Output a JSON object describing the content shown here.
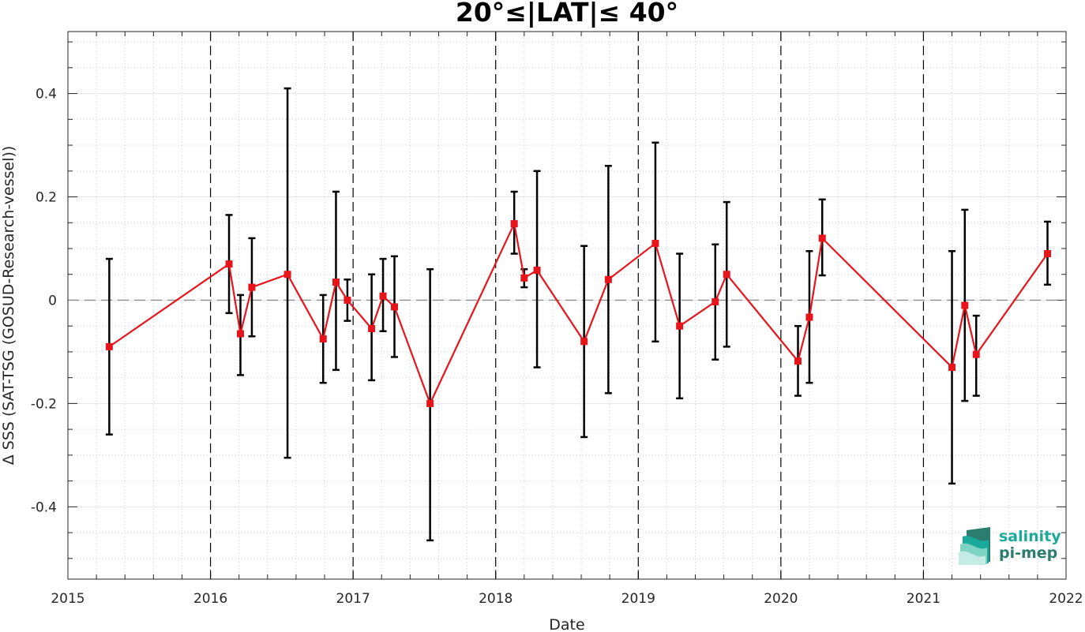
{
  "chart_data": {
    "type": "line",
    "title": "20°≤|LAT|≤ 40°",
    "xlabel": "Date",
    "ylabel": "Δ SSS (SAT-TSG (GOSUD-Research-vessel))",
    "xlim": [
      2015,
      2022
    ],
    "ylim": [
      -0.54,
      0.52
    ],
    "xticks": [
      2015,
      2016,
      2017,
      2018,
      2019,
      2020,
      2021,
      2022
    ],
    "xtick_labels": [
      "2015",
      "2016",
      "2017",
      "2018",
      "2019",
      "2020",
      "2021",
      "2022"
    ],
    "yticks": [
      -0.4,
      -0.2,
      0,
      0.2,
      0.4
    ],
    "ytick_labels": [
      "-0.4",
      "-0.2",
      "0",
      "0.2",
      "0.4"
    ],
    "year_boundaries": [
      2016,
      2017,
      2018,
      2019,
      2020,
      2021
    ],
    "zero_line": 0,
    "grid": "minor dotted",
    "series": [
      {
        "color": "#e8141b",
        "marker": "square",
        "points": [
          {
            "x": 2015.29,
            "y": -0.09,
            "err_low": -0.26,
            "err_high": 0.08
          },
          {
            "x": 2016.13,
            "y": 0.07,
            "err_low": -0.025,
            "err_high": 0.165
          },
          {
            "x": 2016.21,
            "y": -0.065,
            "err_low": -0.145,
            "err_high": 0.01
          },
          {
            "x": 2016.29,
            "y": 0.025,
            "err_low": -0.07,
            "err_high": 0.12
          },
          {
            "x": 2016.54,
            "y": 0.05,
            "err_low": -0.305,
            "err_high": 0.41
          },
          {
            "x": 2016.79,
            "y": -0.075,
            "err_low": -0.16,
            "err_high": 0.01
          },
          {
            "x": 2016.88,
            "y": 0.035,
            "err_low": -0.135,
            "err_high": 0.21
          },
          {
            "x": 2016.96,
            "y": 0.0,
            "err_low": -0.04,
            "err_high": 0.04
          },
          {
            "x": 2017.13,
            "y": -0.055,
            "err_low": -0.155,
            "err_high": 0.05
          },
          {
            "x": 2017.21,
            "y": 0.008,
            "err_low": -0.06,
            "err_high": 0.08
          },
          {
            "x": 2017.29,
            "y": -0.013,
            "err_low": -0.11,
            "err_high": 0.085
          },
          {
            "x": 2017.54,
            "y": -0.2,
            "err_low": -0.465,
            "err_high": 0.06
          },
          {
            "x": 2018.13,
            "y": 0.148,
            "err_low": 0.09,
            "err_high": 0.21
          },
          {
            "x": 2018.2,
            "y": 0.043,
            "err_low": 0.025,
            "err_high": 0.06
          },
          {
            "x": 2018.29,
            "y": 0.058,
            "err_low": -0.13,
            "err_high": 0.25
          },
          {
            "x": 2018.62,
            "y": -0.08,
            "err_low": -0.265,
            "err_high": 0.105
          },
          {
            "x": 2018.79,
            "y": 0.04,
            "err_low": -0.18,
            "err_high": 0.26
          },
          {
            "x": 2019.12,
            "y": 0.11,
            "err_low": -0.08,
            "err_high": 0.305
          },
          {
            "x": 2019.29,
            "y": -0.05,
            "err_low": -0.19,
            "err_high": 0.09
          },
          {
            "x": 2019.54,
            "y": -0.003,
            "err_low": -0.115,
            "err_high": 0.108
          },
          {
            "x": 2019.62,
            "y": 0.05,
            "err_low": -0.09,
            "err_high": 0.19
          },
          {
            "x": 2020.12,
            "y": -0.118,
            "err_low": -0.185,
            "err_high": -0.05
          },
          {
            "x": 2020.2,
            "y": -0.033,
            "err_low": -0.16,
            "err_high": 0.095
          },
          {
            "x": 2020.29,
            "y": 0.12,
            "err_low": 0.048,
            "err_high": 0.195
          },
          {
            "x": 2021.2,
            "y": -0.13,
            "err_low": -0.355,
            "err_high": 0.095
          },
          {
            "x": 2021.29,
            "y": -0.01,
            "err_low": -0.195,
            "err_high": 0.175
          },
          {
            "x": 2021.37,
            "y": -0.105,
            "err_low": -0.185,
            "err_high": -0.03
          },
          {
            "x": 2021.87,
            "y": 0.09,
            "err_low": 0.03,
            "err_high": 0.152
          }
        ]
      }
    ]
  },
  "logo": {
    "line1": "salinity",
    "line2": "pi-mep",
    "color_primary": "#1aa99a",
    "color_secondary": "#2b7d6f"
  }
}
